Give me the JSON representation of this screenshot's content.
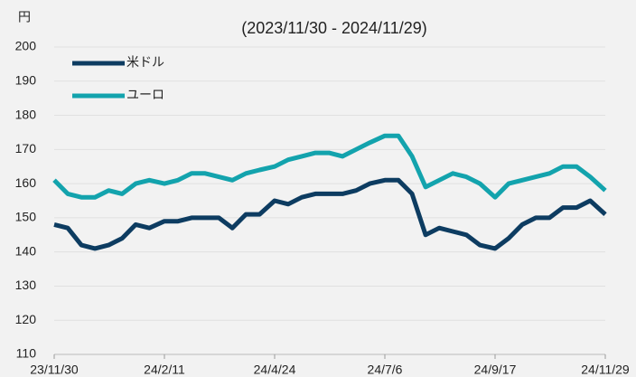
{
  "chart_data": {
    "type": "line",
    "title": "(2023/11/30 - 2024/11/29)",
    "y_label": "円",
    "x": [
      "23/11/30",
      "23/12/9",
      "23/12/18",
      "23/12/27",
      "24/1/5",
      "24/1/14",
      "24/1/23",
      "24/2/1",
      "24/2/11",
      "24/2/20",
      "24/2/29",
      "24/3/9",
      "24/3/18",
      "24/3/27",
      "24/4/5",
      "24/4/14",
      "24/4/24",
      "24/5/3",
      "24/5/12",
      "24/5/21",
      "24/5/30",
      "24/6/8",
      "24/6/17",
      "24/6/26",
      "24/7/6",
      "24/7/15",
      "24/7/24",
      "24/8/2",
      "24/8/11",
      "24/8/20",
      "24/8/29",
      "24/9/7",
      "24/9/17",
      "24/9/26",
      "24/10/5",
      "24/10/14",
      "24/10/23",
      "24/11/1",
      "24/11/10",
      "24/11/19",
      "24/11/29"
    ],
    "xticks": [
      "23/11/30",
      "24/2/11",
      "24/4/24",
      "24/7/6",
      "24/9/17",
      "24/11/29"
    ],
    "series": [
      {
        "name": "米ドル",
        "color": "#0d3c61",
        "values": [
          148,
          147,
          142,
          141,
          142,
          144,
          148,
          147,
          149,
          149,
          150,
          150,
          150,
          147,
          151,
          151,
          155,
          154,
          156,
          157,
          157,
          157,
          158,
          160,
          161,
          161,
          157,
          145,
          147,
          146,
          145,
          142,
          141,
          144,
          148,
          150,
          150,
          153,
          153,
          155,
          151
        ]
      },
      {
        "name": "ユーロ",
        "color": "#13a3ad",
        "values": [
          161,
          157,
          156,
          156,
          158,
          157,
          160,
          161,
          160,
          161,
          163,
          163,
          162,
          161,
          163,
          164,
          165,
          167,
          168,
          169,
          169,
          168,
          170,
          172,
          174,
          174,
          168,
          159,
          161,
          163,
          162,
          160,
          156,
          160,
          161,
          162,
          163,
          165,
          165,
          162,
          158
        ]
      }
    ],
    "ylim": [
      110,
      200
    ],
    "yticks": [
      110,
      120,
      130,
      140,
      150,
      160,
      170,
      180,
      190,
      200
    ],
    "grid": true,
    "legend": "top-left"
  }
}
